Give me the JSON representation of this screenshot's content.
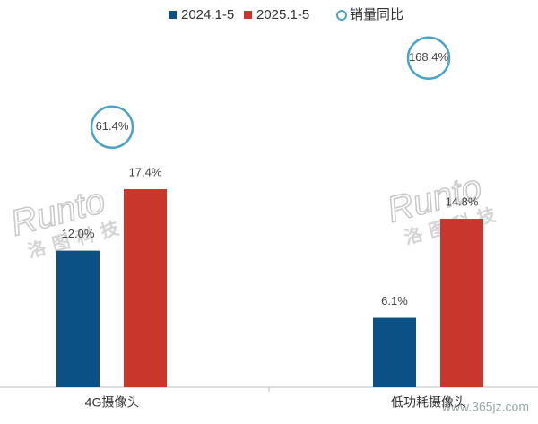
{
  "chart_data": {
    "type": "bar",
    "categories": [
      "4G摄像头",
      "低功耗摄像头"
    ],
    "series": [
      {
        "name": "2024.1-5",
        "color": "#0b5185",
        "values": [
          12.0,
          6.1
        ],
        "value_labels": [
          "12.0%",
          "6.1%"
        ]
      },
      {
        "name": "2025.1-5",
        "color": "#c9372c",
        "values": [
          17.4,
          14.8
        ],
        "value_labels": [
          "17.4%",
          "14.8%"
        ]
      },
      {
        "name": "销量同比",
        "color": "#4ba3c9",
        "marker": "circle",
        "values": [
          61.4,
          168.4
        ],
        "value_labels": [
          "61.4%",
          "168.4%"
        ]
      }
    ],
    "legend": "top",
    "watermark": "Runto",
    "watermark_cn": "洛图科技",
    "site_watermark": "www.365jz.com"
  }
}
